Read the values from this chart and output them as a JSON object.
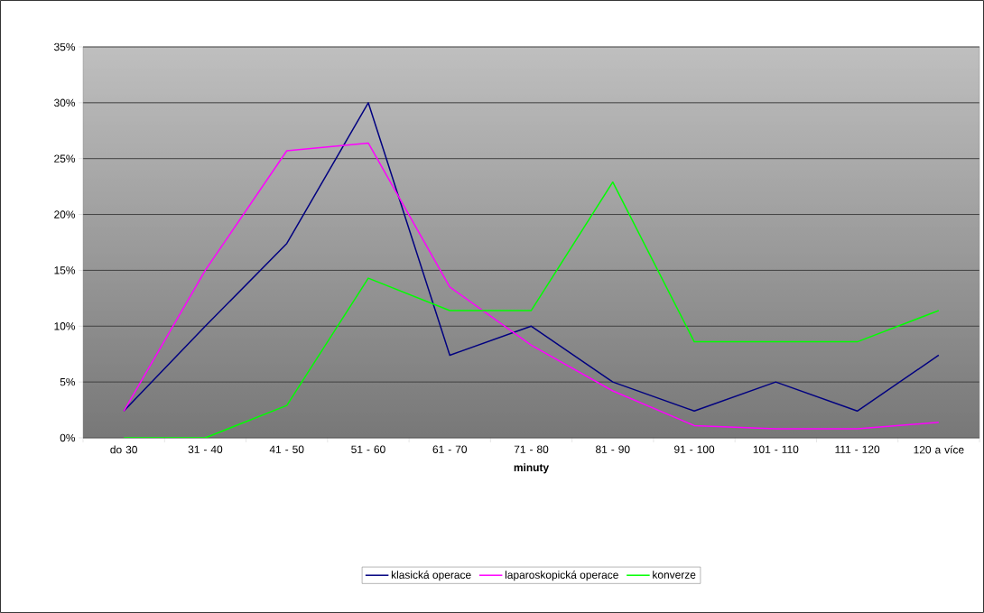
{
  "chart_data": {
    "type": "line",
    "xlabel": "minuty",
    "categories": [
      "do 30",
      "31 - 40",
      "41 - 50",
      "51 - 60",
      "61 - 70",
      "71 - 80",
      "81 - 90",
      "91 - 100",
      "101 - 110",
      "111 - 120",
      "120 a více"
    ],
    "series": [
      {
        "name": "klasická operace",
        "color": "#000080",
        "values": [
          2.4,
          10,
          17.4,
          30,
          7.4,
          10,
          5,
          2.4,
          5,
          2.4,
          7.4
        ]
      },
      {
        "name": "laparoskopická operace",
        "color": "#ff00ff",
        "values": [
          2.4,
          15,
          25.7,
          26.4,
          13.5,
          8.3,
          4.2,
          1.1,
          0.8,
          0.8,
          1.4
        ]
      },
      {
        "name": "konverze",
        "color": "#00ff00",
        "values": [
          0,
          0,
          2.9,
          14.3,
          11.4,
          11.4,
          22.9,
          8.6,
          8.6,
          8.6,
          11.4
        ]
      }
    ],
    "ylim": [
      0,
      35
    ],
    "yticks": [
      {
        "value": 0,
        "label": "0%"
      },
      {
        "value": 5,
        "label": "5%"
      },
      {
        "value": 10,
        "label": "10%"
      },
      {
        "value": 15,
        "label": "15%"
      },
      {
        "value": 20,
        "label": "20%"
      },
      {
        "value": 25,
        "label": "25%"
      },
      {
        "value": 30,
        "label": "30%"
      },
      {
        "value": 35,
        "label": "35%"
      }
    ],
    "grid": "y",
    "legend": "bottom",
    "marker": "none",
    "line_style": "solid"
  }
}
